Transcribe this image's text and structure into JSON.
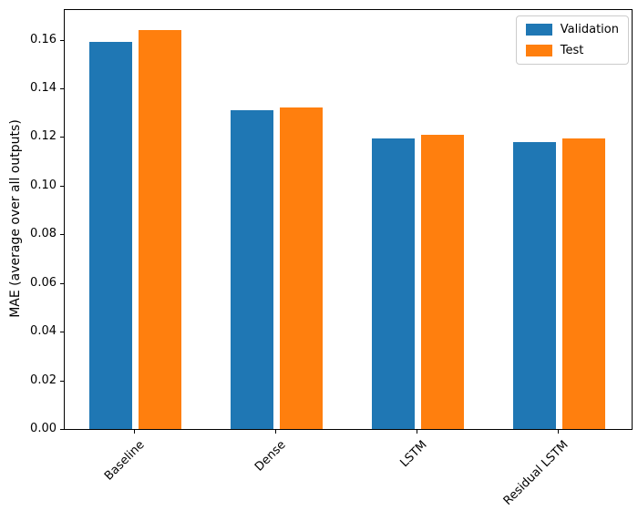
{
  "chart_data": {
    "type": "bar",
    "title": "",
    "xlabel": "",
    "ylabel": "MAE (average over all outputs)",
    "categories": [
      "Baseline",
      "Dense",
      "LSTM",
      "Residual LSTM"
    ],
    "series": [
      {
        "name": "Validation",
        "color": "#1f77b4",
        "values": [
          0.159,
          0.131,
          0.1195,
          0.118
        ]
      },
      {
        "name": "Test",
        "color": "#ff7f0e",
        "values": [
          0.164,
          0.132,
          0.121,
          0.1195
        ]
      }
    ],
    "ylim": [
      0,
      0.1722
    ],
    "yticks": [
      0.0,
      0.02,
      0.04,
      0.06,
      0.08,
      0.1,
      0.12,
      0.14,
      0.16
    ],
    "ytick_format": "2-decimals",
    "x_tick_rotation_deg": 45,
    "grid": false,
    "legend_position": "upper-right",
    "spine_color": "#000000",
    "background_color": "#ffffff"
  }
}
